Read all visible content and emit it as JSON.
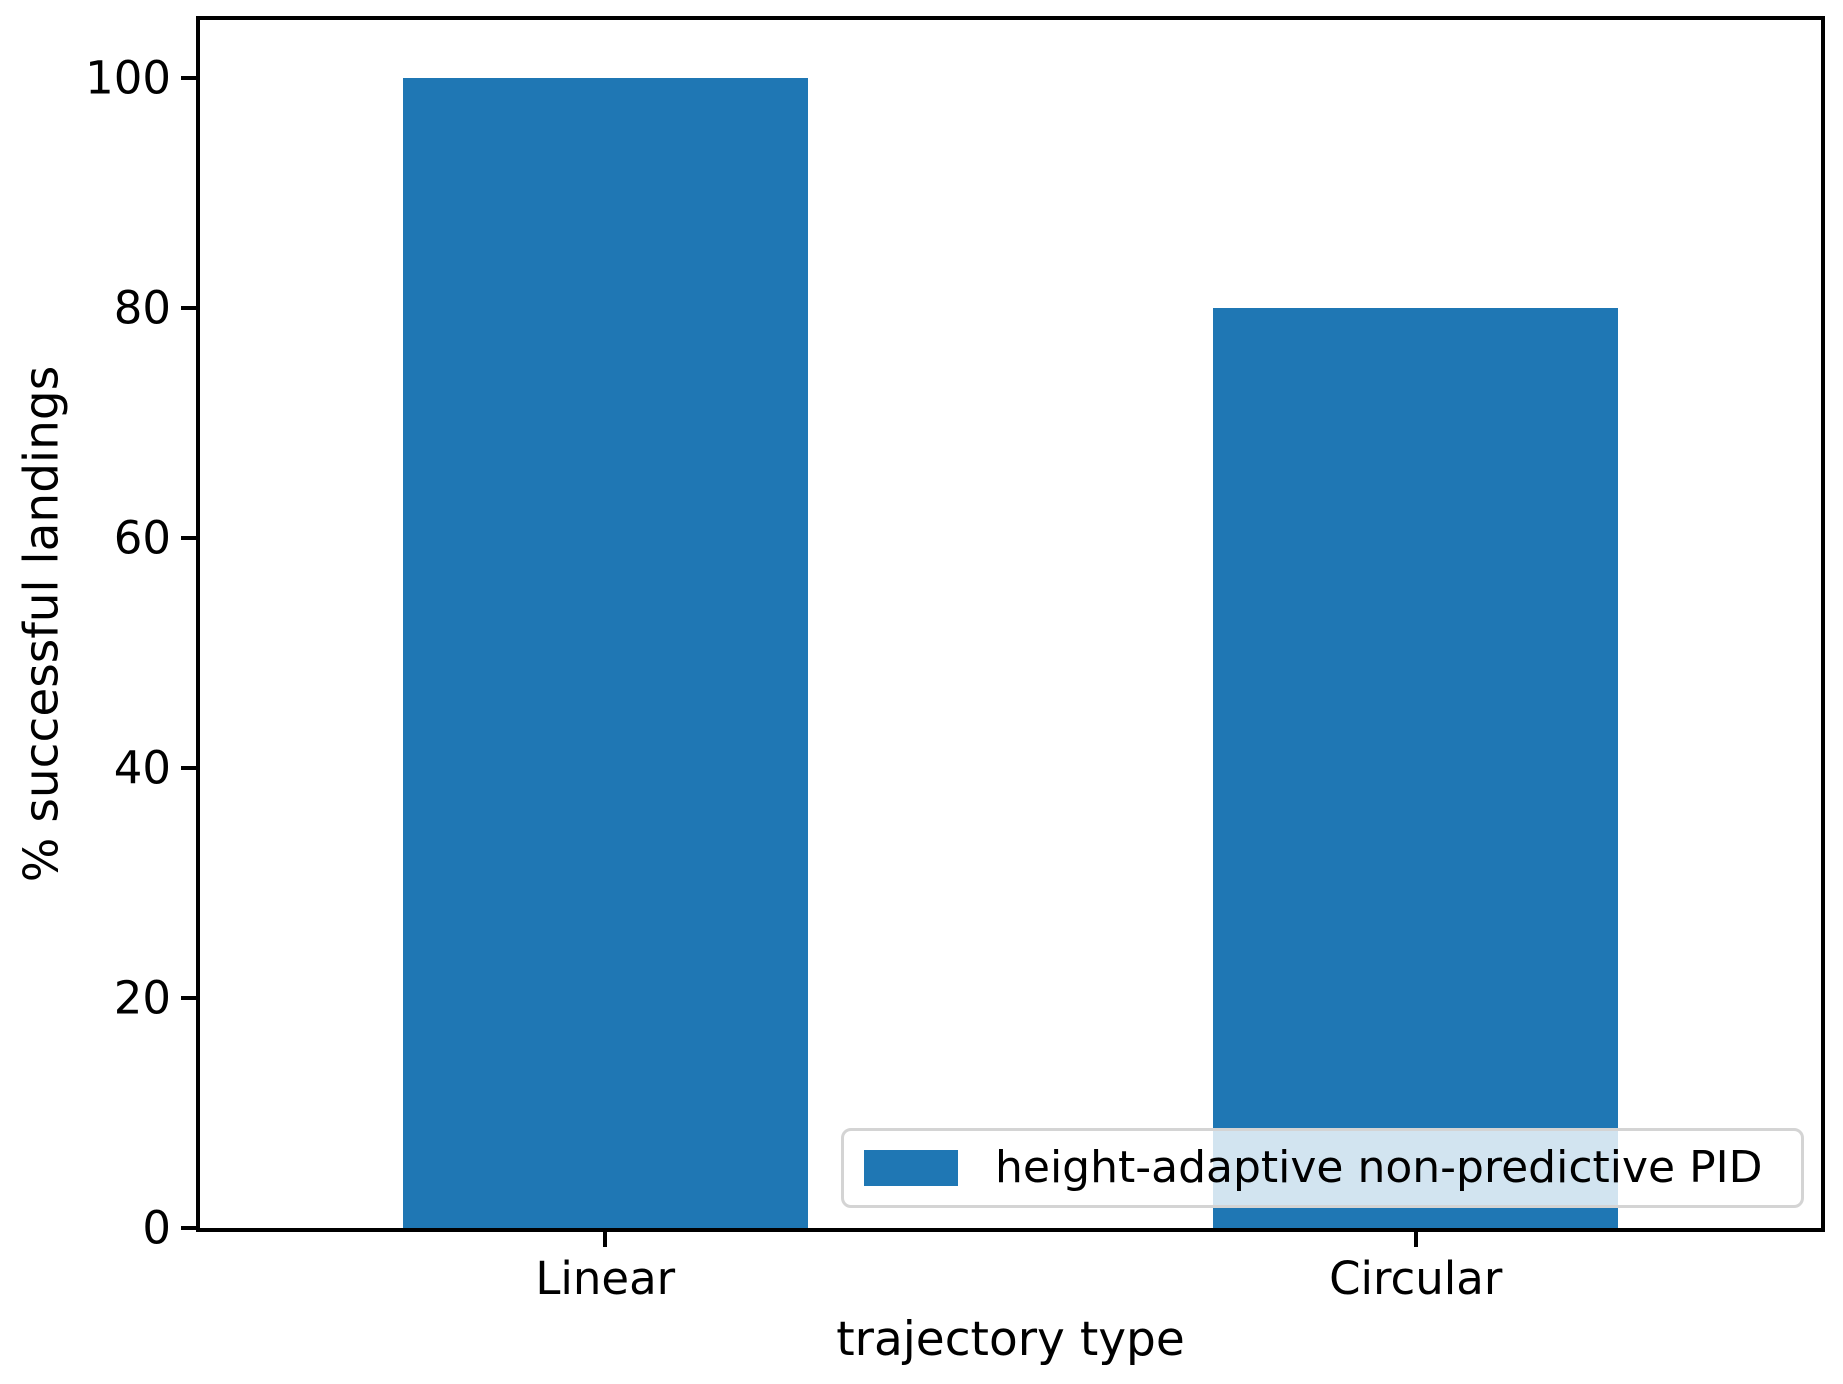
{
  "chart_data": {
    "type": "bar",
    "categories": [
      "Linear",
      "Circular"
    ],
    "values": [
      100,
      80
    ],
    "series": [
      {
        "name": "height-adaptive non-predictive PID",
        "values": [
          100,
          80
        ]
      }
    ],
    "title": "",
    "xlabel": "trajectory type",
    "ylabel": "% successful landings",
    "yticks": [
      0,
      20,
      40,
      60,
      80,
      100
    ],
    "ylim": [
      0,
      105
    ],
    "xlim": [
      -0.5,
      1.5
    ],
    "bar_width": 0.5,
    "bar_color": "#1f77b4",
    "grid": false,
    "legend": {
      "position": "lower right",
      "entries": [
        "height-adaptive non-predictive PID"
      ]
    }
  }
}
